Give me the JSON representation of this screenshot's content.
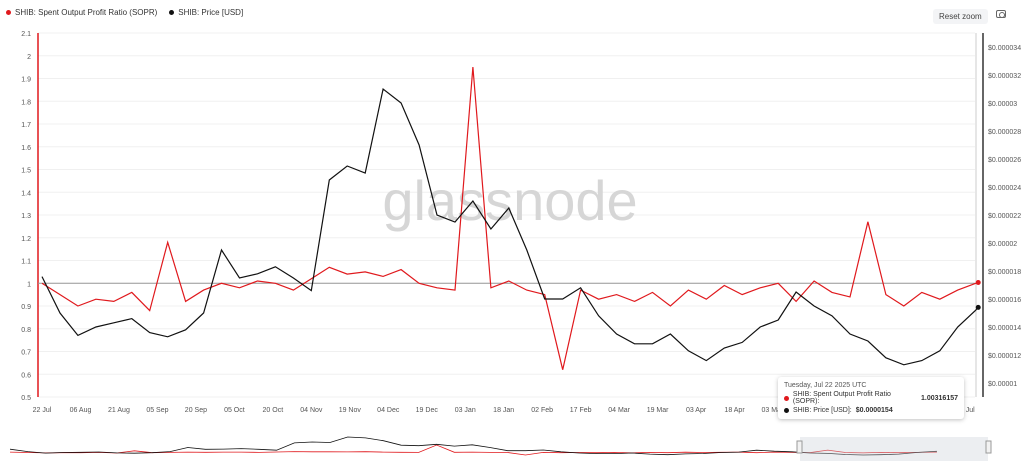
{
  "legend": {
    "items": [
      {
        "label": "SHIB: Spent Output Profit Ratio (SOPR)",
        "color": "#e0191d"
      },
      {
        "label": "SHIB: Price [USD]",
        "color": "#111111"
      }
    ]
  },
  "toolbar": {
    "reset_zoom": "Reset zoom",
    "camera_icon": "camera-icon"
  },
  "watermark": "glassnode",
  "tooltip": {
    "date": "Tuesday, Jul 22 2025 UTC",
    "sopr_label": "SHIB: Spent Output Profit Ratio (SOPR):",
    "sopr_value": "1.00316157",
    "price_label": "SHIB: Price [USD]:",
    "price_value": "$0.0000154"
  },
  "chart_data": {
    "type": "line",
    "x": [
      "2024-07-22",
      "2024-07-29",
      "2024-08-05",
      "2024-08-12",
      "2024-08-19",
      "2024-08-26",
      "2024-09-02",
      "2024-09-09",
      "2024-09-16",
      "2024-09-23",
      "2024-09-30",
      "2024-10-07",
      "2024-10-14",
      "2024-10-21",
      "2024-10-28",
      "2024-11-04",
      "2024-11-11",
      "2024-11-18",
      "2024-11-25",
      "2024-12-02",
      "2024-12-09",
      "2024-12-16",
      "2024-12-23",
      "2024-12-30",
      "2025-01-06",
      "2025-01-13",
      "2025-01-20",
      "2025-01-27",
      "2025-02-03",
      "2025-02-10",
      "2025-02-17",
      "2025-02-24",
      "2025-03-03",
      "2025-03-10",
      "2025-03-17",
      "2025-03-24",
      "2025-03-31",
      "2025-04-07",
      "2025-04-14",
      "2025-04-21",
      "2025-04-28",
      "2025-05-05",
      "2025-05-12",
      "2025-05-19",
      "2025-05-26",
      "2025-06-02",
      "2025-06-09",
      "2025-06-16",
      "2025-06-23",
      "2025-06-30",
      "2025-07-07",
      "2025-07-14",
      "2025-07-21",
      "2025-07-22"
    ],
    "series": [
      {
        "name": "SHIB: Spent Output Profit Ratio (SOPR)",
        "axis": "left",
        "color": "#e0191d",
        "values": [
          1.0,
          0.95,
          0.9,
          0.93,
          0.92,
          0.96,
          0.88,
          1.18,
          0.92,
          0.97,
          1.0,
          0.98,
          1.01,
          1.0,
          0.97,
          1.02,
          1.07,
          1.04,
          1.05,
          1.03,
          1.06,
          1.0,
          0.98,
          0.97,
          1.95,
          0.98,
          1.01,
          0.97,
          0.95,
          0.62,
          0.97,
          0.93,
          0.95,
          0.92,
          0.96,
          0.9,
          0.97,
          0.93,
          0.99,
          0.95,
          0.98,
          1.0,
          0.92,
          1.01,
          0.96,
          0.94,
          1.27,
          0.95,
          0.9,
          0.96,
          0.93,
          0.97,
          1.0,
          1.00316157
        ]
      },
      {
        "name": "SHIB: Price [USD]",
        "axis": "right",
        "color": "#111111",
        "values": [
          1.76e-05,
          1.5e-05,
          1.34e-05,
          1.4e-05,
          1.43e-05,
          1.46e-05,
          1.36e-05,
          1.33e-05,
          1.38e-05,
          1.5e-05,
          1.95e-05,
          1.75e-05,
          1.78e-05,
          1.83e-05,
          1.75e-05,
          1.66e-05,
          2.45e-05,
          2.55e-05,
          2.5e-05,
          3.1e-05,
          3e-05,
          2.7e-05,
          2.2e-05,
          2.15e-05,
          2.3e-05,
          2.1e-05,
          2.25e-05,
          1.95e-05,
          1.6e-05,
          1.6e-05,
          1.68e-05,
          1.48e-05,
          1.35e-05,
          1.28e-05,
          1.28e-05,
          1.35e-05,
          1.23e-05,
          1.16e-05,
          1.25e-05,
          1.29e-05,
          1.4e-05,
          1.45e-05,
          1.65e-05,
          1.55e-05,
          1.48e-05,
          1.35e-05,
          1.3e-05,
          1.18e-05,
          1.13e-05,
          1.16e-05,
          1.23e-05,
          1.4e-05,
          1.52e-05,
          1.54e-05
        ]
      }
    ],
    "y_left": {
      "ticks": [
        "0.5",
        "0.6",
        "0.7",
        "0.8",
        "0.9",
        "1",
        "1.1",
        "1.2",
        "1.3",
        "1.4",
        "1.5",
        "1.6",
        "1.7",
        "1.8",
        "1.9",
        "2",
        "2.1"
      ],
      "range": [
        0.5,
        2.1
      ]
    },
    "y_right": {
      "ticks": [
        "$0.00001",
        "$0.000012",
        "$0.000014",
        "$0.000016",
        "$0.000018",
        "$0.00002",
        "$0.000022",
        "$0.000024",
        "$0.000026",
        "$0.000028",
        "$0.00003",
        "$0.000032",
        "$0.000034"
      ],
      "range": [
        1e-05,
        3.4e-05
      ],
      "scale": "linear"
    },
    "x_ticks": [
      {
        "label": "22 Jul",
        "date": "2024-07-22"
      },
      {
        "label": "06 Aug",
        "date": "2024-08-06"
      },
      {
        "label": "21 Aug",
        "date": "2024-08-21"
      },
      {
        "label": "05 Sep",
        "date": "2024-09-05"
      },
      {
        "label": "20 Sep",
        "date": "2024-09-20"
      },
      {
        "label": "05 Oct",
        "date": "2024-10-05"
      },
      {
        "label": "20 Oct",
        "date": "2024-10-20"
      },
      {
        "label": "04 Nov",
        "date": "2024-11-04"
      },
      {
        "label": "19 Nov",
        "date": "2024-11-19"
      },
      {
        "label": "04 Dec",
        "date": "2024-12-04"
      },
      {
        "label": "19 Dec",
        "date": "2024-12-19"
      },
      {
        "label": "03 Jan",
        "date": "2025-01-03"
      },
      {
        "label": "18 Jan",
        "date": "2025-01-18"
      },
      {
        "label": "02 Feb",
        "date": "2025-02-02"
      },
      {
        "label": "17 Feb",
        "date": "2025-02-17"
      },
      {
        "label": "04 Mar",
        "date": "2025-03-04"
      },
      {
        "label": "19 Mar",
        "date": "2025-03-19"
      },
      {
        "label": "03 Apr",
        "date": "2025-04-03"
      },
      {
        "label": "18 Apr",
        "date": "2025-04-18"
      },
      {
        "label": "03 May",
        "date": "2025-05-03"
      },
      {
        "label": "17 Jul",
        "date": "2025-07-17"
      }
    ],
    "reference_line": 1,
    "grid": true,
    "legend_position": "top-left"
  }
}
